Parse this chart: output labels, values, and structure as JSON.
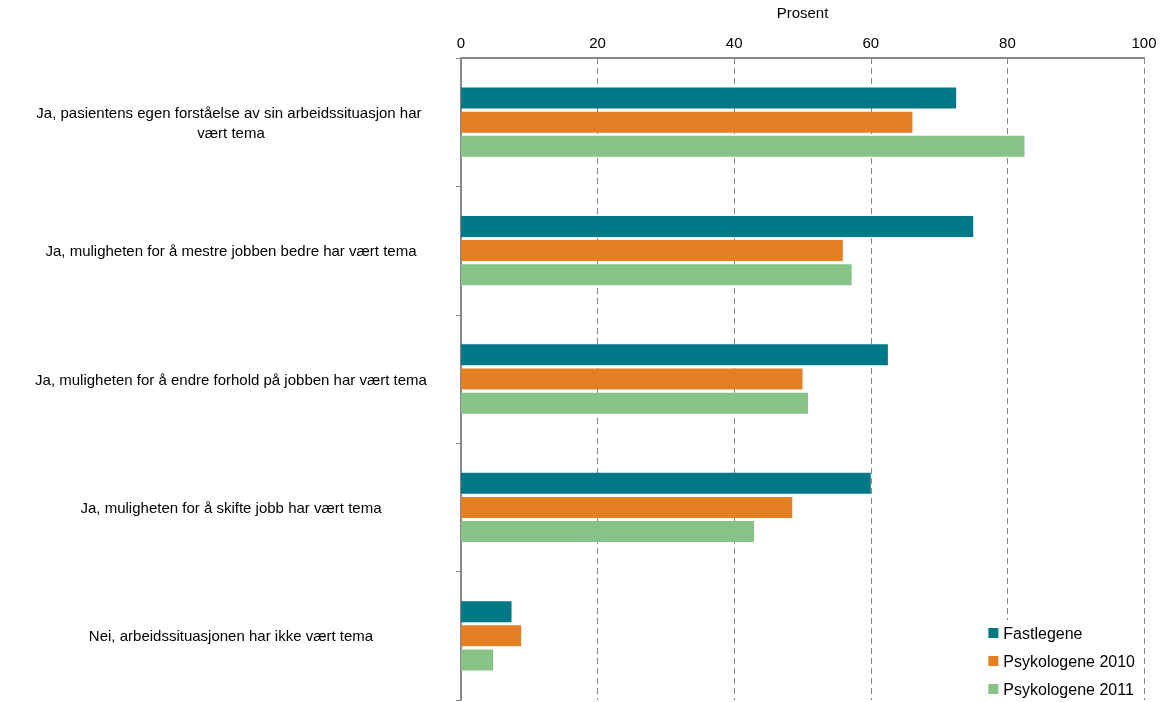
{
  "chart_data": {
    "type": "bar",
    "orientation": "horizontal",
    "xlabel": "Prosent",
    "categories": [
      "Ja, pasientens egen forståelse av sin arbeidssituasjon har vært tema",
      "Ja, muligheten for å mestre jobben bedre har vært tema",
      "Ja, muligheten for å endre forhold på jobben har vært tema",
      "Ja, muligheten for å skifte jobb har vært tema",
      "Nei, arbeidssituasjonen har ikke vært tema"
    ],
    "series": [
      {
        "name": "Fastlegene",
        "color": "#007987",
        "values": [
          72.5,
          75.0,
          62.5,
          60.0,
          7.4
        ]
      },
      {
        "name": "Psykologene 2010",
        "color": "#e57f24",
        "values": [
          66.1,
          55.9,
          50.0,
          48.5,
          8.8
        ]
      },
      {
        "name": "Psykologene 2011",
        "color": "#86c387",
        "values": [
          82.5,
          57.2,
          50.8,
          42.9,
          4.7
        ]
      }
    ],
    "xlim": [
      0,
      100
    ],
    "xticks": [
      0,
      20,
      40,
      60,
      80,
      100
    ],
    "grid": "x",
    "legend": "bottom right"
  }
}
